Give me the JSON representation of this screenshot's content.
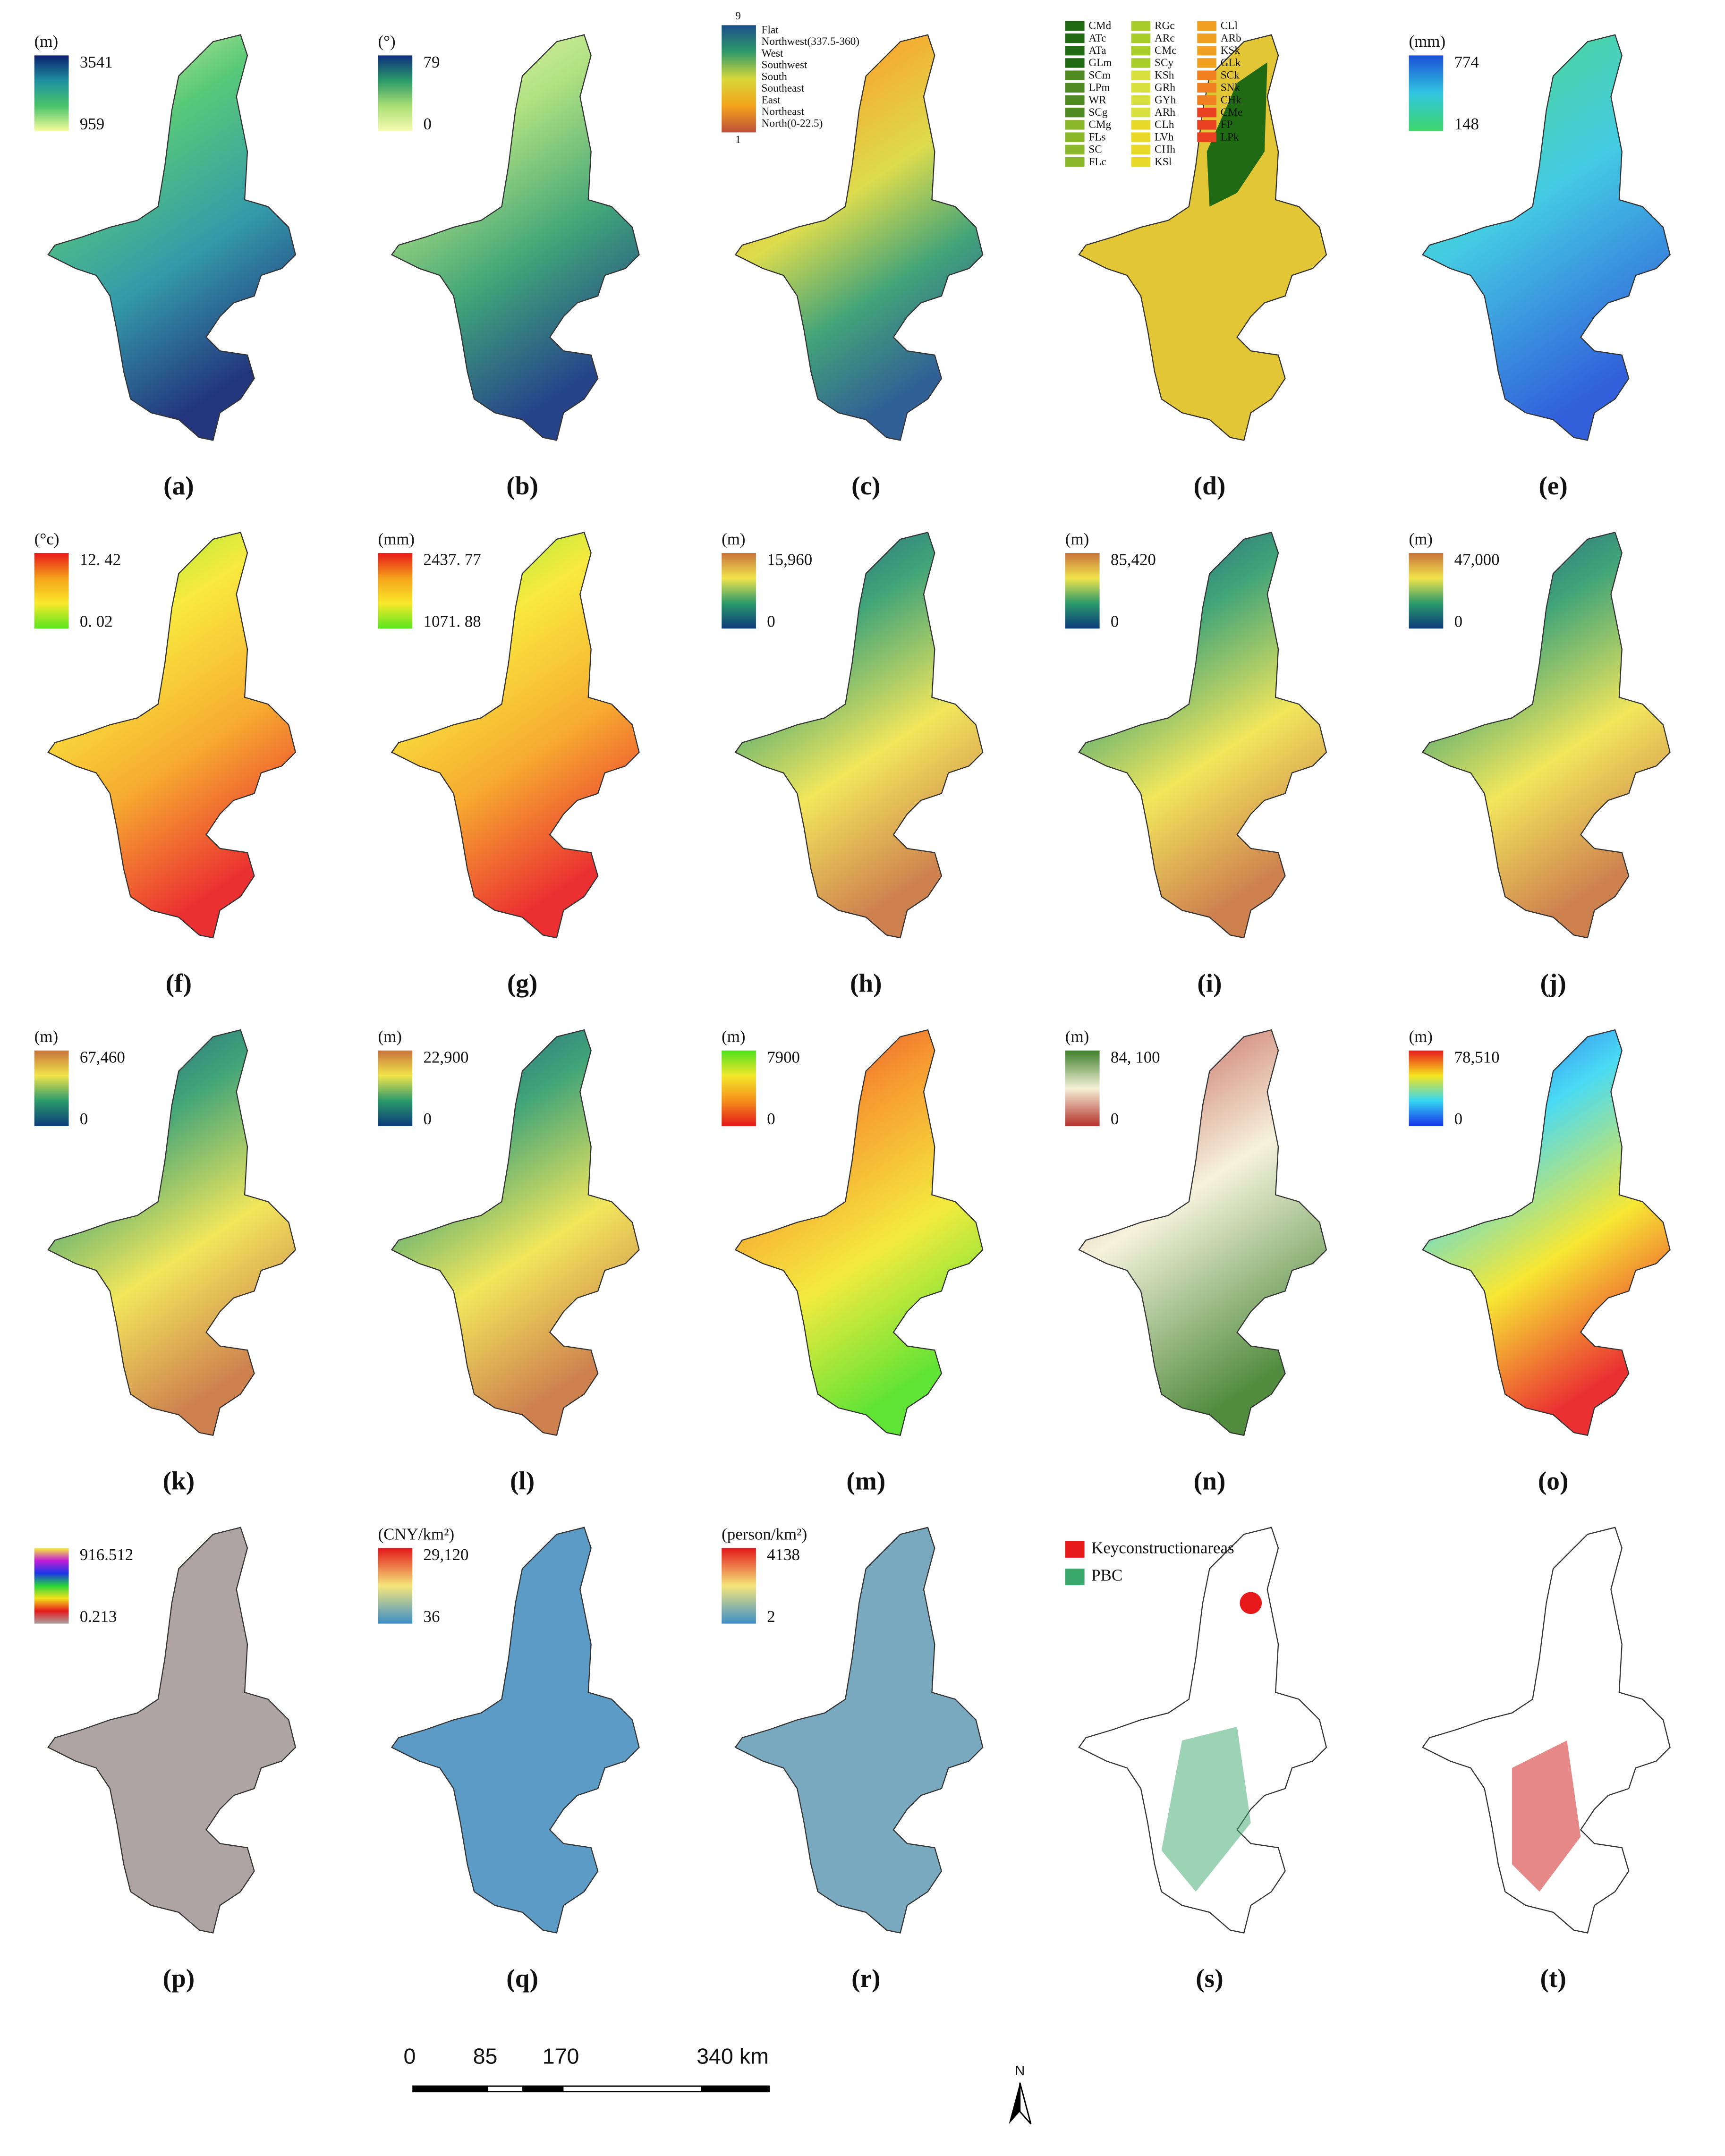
{
  "panels": [
    {
      "label": "(a)",
      "unit": "(m)",
      "max": "3541",
      "min": "959",
      "colors": [
        "#0b1f6e",
        "#1e8fa0",
        "#47c36a",
        "#f5fb9a"
      ]
    },
    {
      "label": "(b)",
      "unit": "(°)",
      "max": "79",
      "min": "0",
      "colors": [
        "#0e2f7d",
        "#2b9a6a",
        "#a8de73",
        "#f6fbb0"
      ]
    },
    {
      "label": "(c)",
      "max": "9",
      "min": "1",
      "colors": [
        "#1a4f8a",
        "#2f9a6a",
        "#d8d83a",
        "#f3a41a",
        "#c0503a"
      ],
      "items": [
        "Flat",
        "Northwest(337.5-360)",
        "West",
        "Southwest",
        "South",
        "Southeast",
        "East",
        "Northeast",
        "North(0-22.5)"
      ]
    },
    {
      "label": "(d)",
      "codes": [
        [
          "CMd",
          "ATc",
          "ATa",
          "GLm",
          "SCm",
          "LPm",
          "WR",
          "SCg",
          "CMg",
          "FLs",
          "SC",
          "FLc"
        ],
        [
          "RGc",
          "ARc",
          "CMc",
          "SCy",
          "KSh",
          "GRh",
          "GYh",
          "ARh",
          "CLh",
          "LVh",
          "CHh",
          "KSl"
        ],
        [
          "CLl",
          "ARb",
          "KSk",
          "GLk",
          "SCk",
          "SNk",
          "CHk",
          "CMe",
          "FP",
          "LPk"
        ]
      ]
    },
    {
      "label": "(e)",
      "unit": "(mm)",
      "max": "774",
      "min": "148",
      "colors": [
        "#1b4fd6",
        "#30c6e0",
        "#3ed66a"
      ]
    },
    {
      "label": "(f)",
      "unit": "(°c)",
      "max": "12. 42",
      "min": "0. 02",
      "colors": [
        "#e8191b",
        "#f5a21a",
        "#f8e82a",
        "#5ae61e"
      ]
    },
    {
      "label": "(g)",
      "unit": "(mm)",
      "max": "2437. 77",
      "min": "1071. 88",
      "colors": [
        "#e8191b",
        "#f5a21a",
        "#f8e82a",
        "#5ae61e"
      ]
    },
    {
      "label": "(h)",
      "unit": "(m)",
      "max": "15,960",
      "min": "0",
      "colors": [
        "#c8733c",
        "#f0e44a",
        "#2b9a6a",
        "#0b3c7a"
      ]
    },
    {
      "label": "(i)",
      "unit": "(m)",
      "max": "85,420",
      "min": "0",
      "colors": [
        "#c8733c",
        "#f0e44a",
        "#2b9a6a",
        "#0b3c7a"
      ]
    },
    {
      "label": "(j)",
      "unit": "(m)",
      "max": "47,000",
      "min": "0",
      "colors": [
        "#c8733c",
        "#f0e44a",
        "#2b9a6a",
        "#0b3c7a"
      ]
    },
    {
      "label": "(k)",
      "unit": "(m)",
      "max": "67,460",
      "min": "0",
      "colors": [
        "#c8733c",
        "#f0e44a",
        "#2b9a6a",
        "#0b3c7a"
      ]
    },
    {
      "label": "(l)",
      "unit": "(m)",
      "max": "22,900",
      "min": "0",
      "colors": [
        "#c8733c",
        "#f0e44a",
        "#2b9a6a",
        "#0b3c7a"
      ]
    },
    {
      "label": "(m)",
      "unit": "(m)",
      "max": "7900",
      "min": "0",
      "colors": [
        "#4ee01e",
        "#f3e82a",
        "#f5901a",
        "#e4171a"
      ]
    },
    {
      "label": "(n)",
      "unit": "(m)",
      "max": "84, 100",
      "min": "0",
      "colors": [
        "#3f7f2a",
        "#f4f1d8",
        "#b5302a"
      ]
    },
    {
      "label": "(o)",
      "unit": "(m)",
      "max": "78,510",
      "min": "0",
      "colors": [
        "#e8191b",
        "#f6e51d",
        "#35d6f3",
        "#1534e8"
      ]
    },
    {
      "label": "(p)",
      "max": "916.512",
      "min": "0.213",
      "colors": [
        "#f8ef3a",
        "#c21dd5",
        "#1a35e8",
        "#2ad63a",
        "#f5e21a",
        "#e6191b",
        "#a8a0a0"
      ]
    },
    {
      "label": "(q)",
      "unit": "(CNY/km²)",
      "max": "29,120",
      "min": "36",
      "colors": [
        "#e4171a",
        "#f5e67a",
        "#3c8fc8"
      ]
    },
    {
      "label": "(r)",
      "unit": "(person/km²)",
      "max": "4138",
      "min": "2",
      "colors": [
        "#e4171a",
        "#f5e67a",
        "#3c8fc8"
      ]
    },
    {
      "label": "(s)",
      "items": [
        "Keyconstructionareas",
        "PBC"
      ]
    },
    {
      "label": "(t)"
    }
  ],
  "scale_bar": [
    "0",
    "85",
    "170",
    "340 km"
  ],
  "north": "N"
}
